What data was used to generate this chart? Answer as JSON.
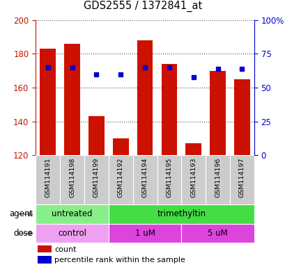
{
  "title": "GDS2555 / 1372841_at",
  "samples": [
    "GSM114191",
    "GSM114198",
    "GSM114199",
    "GSM114192",
    "GSM114194",
    "GSM114195",
    "GSM114193",
    "GSM114196",
    "GSM114197"
  ],
  "bar_values": [
    183,
    186,
    143,
    130,
    188,
    174,
    127,
    170,
    165
  ],
  "blue_dots": [
    172,
    172,
    168,
    168,
    172,
    172,
    166,
    171,
    171
  ],
  "bar_color": "#cc1100",
  "dot_color": "#0000cc",
  "baseline": 120,
  "ylim_left": [
    120,
    200
  ],
  "yticks_left": [
    120,
    140,
    160,
    180,
    200
  ],
  "yticks_right": [
    0,
    25,
    50,
    75,
    100
  ],
  "ytick_labels_right": [
    "0",
    "25",
    "50",
    "75",
    "100%"
  ],
  "agent_groups": [
    {
      "label": "untreated",
      "start": 0,
      "end": 3,
      "color": "#88ee88"
    },
    {
      "label": "trimethyltin",
      "start": 3,
      "end": 9,
      "color": "#44dd44"
    }
  ],
  "dose_groups": [
    {
      "label": "control",
      "start": 0,
      "end": 3,
      "color": "#f0a0f0"
    },
    {
      "label": "1 uM",
      "start": 3,
      "end": 6,
      "color": "#dd44dd"
    },
    {
      "label": "5 uM",
      "start": 6,
      "end": 9,
      "color": "#dd44dd"
    }
  ],
  "legend_count_color": "#cc1100",
  "legend_dot_color": "#0000cc",
  "bg_plot": "#ffffff",
  "bg_label_row": "#cccccc",
  "axis_color_left": "#cc1100",
  "axis_color_right": "#0000cc",
  "grid_color": "#000000"
}
